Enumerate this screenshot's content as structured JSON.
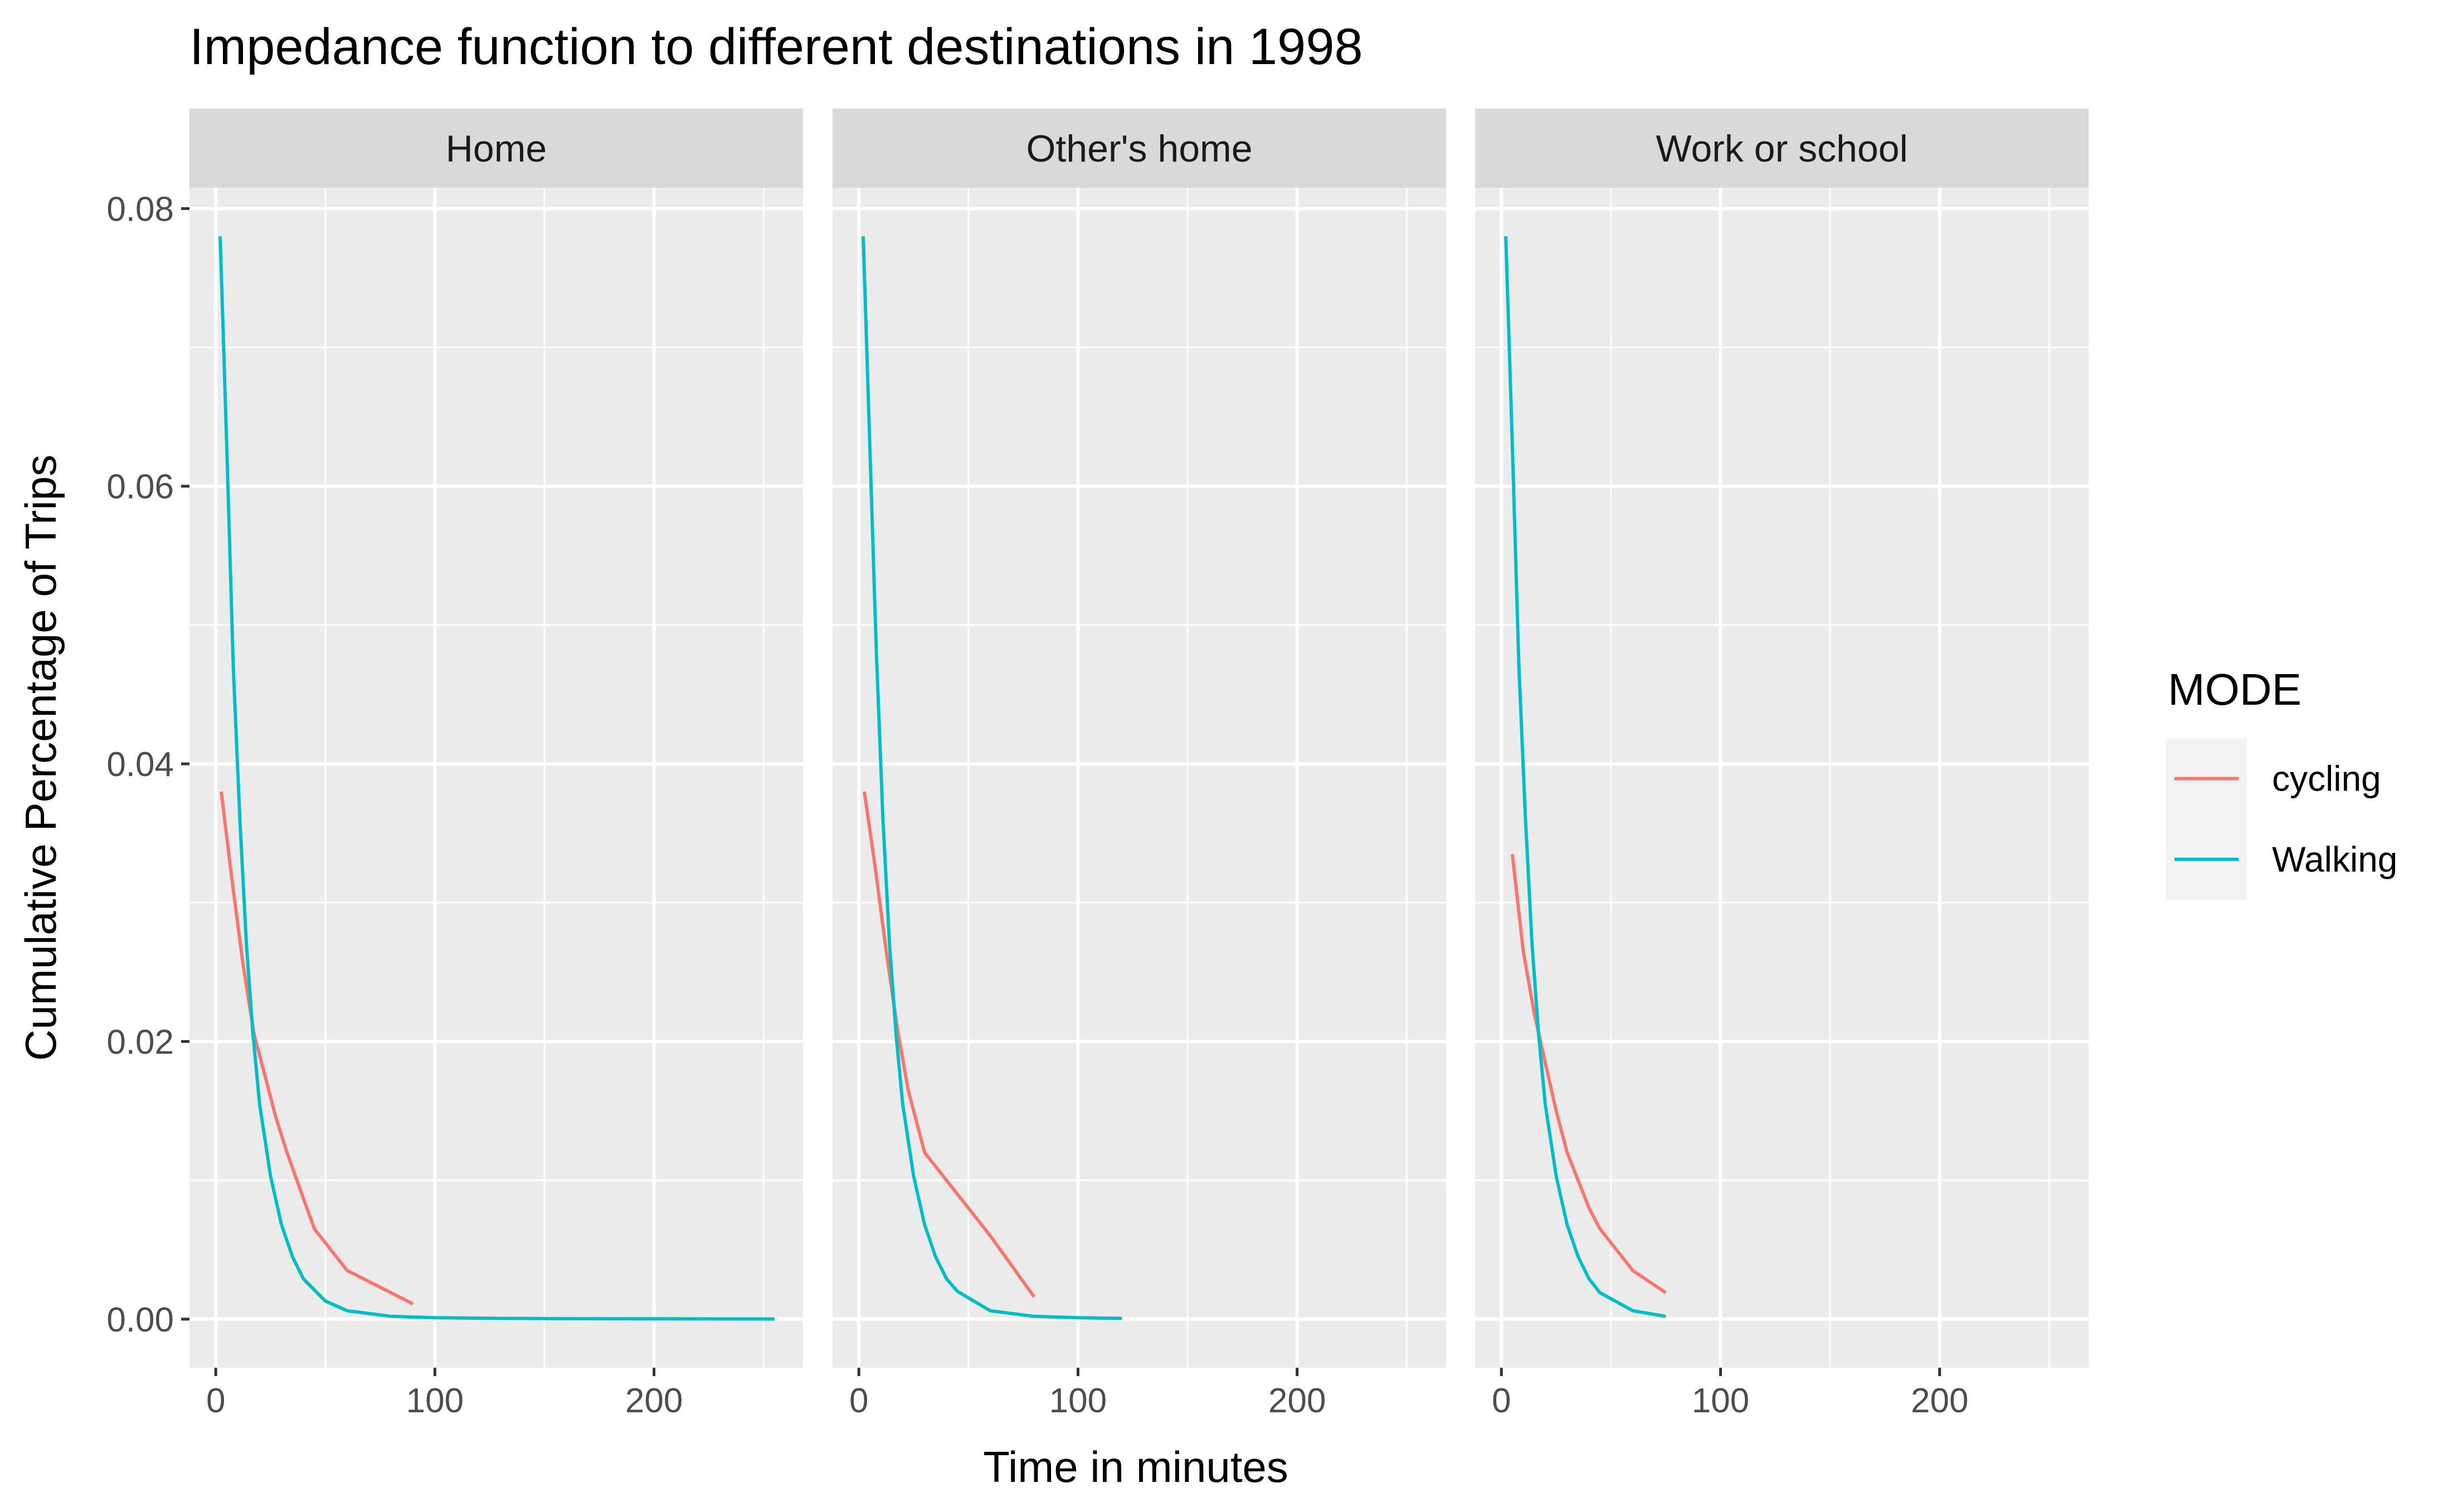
{
  "chart_data": {
    "type": "line",
    "title": "Impedance function to different destinations in 1998",
    "xlabel": "Time in minutes",
    "ylabel": "Cumulative Percentage of Trips",
    "xlim": [
      -12,
      268
    ],
    "ylim": [
      -0.0035,
      0.0815
    ],
    "x_ticks": [
      0,
      100,
      200
    ],
    "x_tick_labels": [
      "0",
      "100",
      "200"
    ],
    "x_minor_ticks": [
      50,
      150,
      250
    ],
    "y_ticks": [
      0,
      0.02,
      0.04,
      0.06,
      0.08
    ],
    "y_tick_labels": [
      "0.00",
      "0.02",
      "0.04",
      "0.06",
      "0.08"
    ],
    "y_minor_ticks": [
      0.01,
      0.03,
      0.05,
      0.07
    ],
    "grid": true,
    "legend": {
      "title": "MODE",
      "position": "right",
      "entries": [
        {
          "label": "cycling",
          "color": "#F8766D"
        },
        {
          "label": "Walking",
          "color": "#00BFC4"
        }
      ]
    },
    "panels": [
      {
        "label": "Home",
        "series": [
          {
            "name": "cycling",
            "color": "#F8766D",
            "x": [
              2.5,
              7.5,
              12.5,
              17.5,
              22.5,
              27.5,
              32.5,
              37.5,
              45,
              60,
              90
            ],
            "y": [
              0.038,
              0.0315,
              0.0255,
              0.0205,
              0.0175,
              0.0145,
              0.012,
              0.0098,
              0.0065,
              0.0035,
              0.0011
            ]
          },
          {
            "name": "Walking",
            "color": "#00BFC4",
            "x": [
              2,
              5,
              8,
              11,
              14,
              17,
              20,
              25,
              30,
              35,
              40,
              50,
              60,
              80,
              100,
              130,
              160,
              200,
              255
            ],
            "y": [
              0.078,
              0.063,
              0.047,
              0.036,
              0.027,
              0.0205,
              0.0155,
              0.0103,
              0.0068,
              0.0045,
              0.0029,
              0.0013,
              0.0006,
              0.0002,
              0.0001,
              5e-05,
              3e-05,
              2e-05,
              1e-05
            ]
          }
        ]
      },
      {
        "label": "Other's home",
        "series": [
          {
            "name": "cycling",
            "color": "#F8766D",
            "x": [
              2.5,
              7.5,
              12.5,
              17.5,
              22.5,
              30,
              45,
              60,
              80
            ],
            "y": [
              0.038,
              0.0325,
              0.0265,
              0.021,
              0.0165,
              0.012,
              0.009,
              0.006,
              0.0016
            ]
          },
          {
            "name": "Walking",
            "color": "#00BFC4",
            "x": [
              2,
              5,
              8,
              11,
              14,
              17,
              20,
              25,
              30,
              35,
              40,
              45,
              60,
              80,
              100,
              120
            ],
            "y": [
              0.078,
              0.063,
              0.048,
              0.036,
              0.027,
              0.0205,
              0.0155,
              0.0103,
              0.0068,
              0.0045,
              0.0029,
              0.002,
              0.0006,
              0.0002,
              0.0001,
              5e-05
            ]
          }
        ]
      },
      {
        "label": "Work or school",
        "series": [
          {
            "name": "cycling",
            "color": "#F8766D",
            "x": [
              5,
              10,
              15,
              20,
              25,
              30,
              40,
              45,
              60,
              75
            ],
            "y": [
              0.0335,
              0.0265,
              0.022,
              0.0185,
              0.015,
              0.012,
              0.008,
              0.0065,
              0.0035,
              0.0019
            ]
          },
          {
            "name": "Walking",
            "color": "#00BFC4",
            "x": [
              2,
              5,
              8,
              11,
              14,
              17,
              20,
              25,
              30,
              35,
              40,
              45,
              60,
              75
            ],
            "y": [
              0.078,
              0.063,
              0.047,
              0.036,
              0.027,
              0.0205,
              0.0155,
              0.0103,
              0.0068,
              0.0045,
              0.0029,
              0.0019,
              0.0006,
              0.0002
            ]
          }
        ]
      }
    ]
  }
}
